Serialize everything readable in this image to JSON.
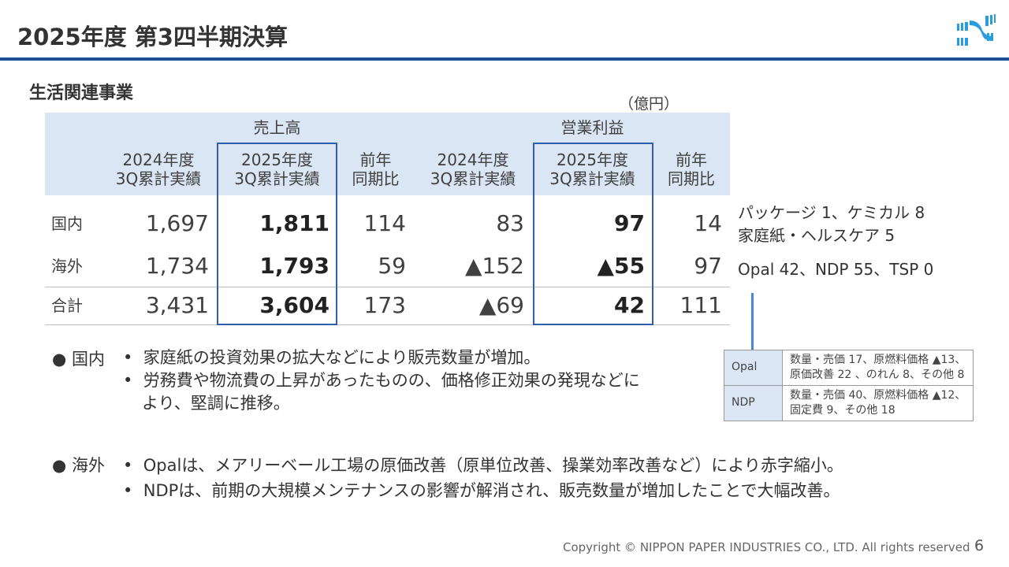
{
  "header": {
    "title": "2025年度 第3四半期決算",
    "section": "生活関連事業",
    "unit": "（億円）"
  },
  "table": {
    "groups": [
      "売上高",
      "営業利益"
    ],
    "columns": [
      "2024年度\n3Q累計実績",
      "2025年度\n3Q累計実績",
      "前年\n同期比",
      "2024年度\n3Q累計実績",
      "2025年度\n3Q累計実績",
      "前年\n同期比"
    ],
    "rows": [
      {
        "label": "国内",
        "values": [
          "1,697",
          "1,811",
          "114",
          "83",
          "97",
          "14"
        ]
      },
      {
        "label": "海外",
        "values": [
          "1,734",
          "1,793",
          "59",
          "▲152",
          "▲55",
          "97"
        ]
      },
      {
        "label": "合計",
        "values": [
          "3,431",
          "3,604",
          "173",
          "▲69",
          "42",
          "111"
        ]
      }
    ]
  },
  "side_notes": [
    "パッケージ 1、ケミカル 8",
    "家庭紙・ヘルスケア 5",
    "Opal 42、NDP 55、TSP 0"
  ],
  "breakdown": [
    {
      "key": "Opal",
      "lines": [
        "数量・売価 17、原燃料価格 ▲13、",
        "原価改善 22 、のれん 8、その他 8"
      ]
    },
    {
      "key": "NDP",
      "lines": [
        "数量・売価 40、原燃料価格 ▲12、",
        "固定費 9、その他 18"
      ]
    }
  ],
  "commentary": [
    {
      "label": "● 国内",
      "bullets": [
        "家庭紙の投資効果の拡大などにより販売数量が増加。",
        "労務費や物流費の上昇があったものの、価格修正効果の発現などに\nより、堅調に推移。"
      ]
    },
    {
      "label": "● 海外",
      "bullets": [
        "Opalは、メアリーベール工場の原価改善（原単位改善、操業効率改善など）により赤字縮小。",
        "NDPは、前期の大規模メンテナンスの影響が解消され、販売数量が増加したことで大幅改善。"
      ]
    }
  ],
  "footer": {
    "copyright": "Copyright © NIPPON PAPER INDUSTRIES CO., LTD. All rights reserved",
    "page": "6"
  }
}
